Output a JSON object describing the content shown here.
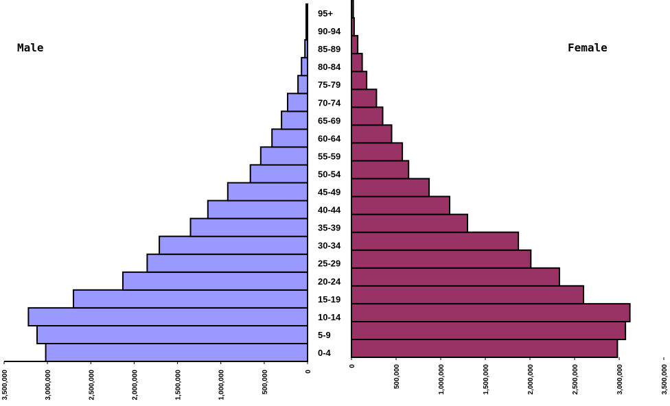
{
  "chart_data": {
    "type": "bar",
    "subtype": "population-pyramid",
    "orientation": "horizontal",
    "categories": [
      "0-4",
      "5-9",
      "10-14",
      "15-19",
      "20-24",
      "25-29",
      "30-34",
      "35-39",
      "40-44",
      "45-49",
      "50-54",
      "55-59",
      "60-64",
      "65-69",
      "70-74",
      "75-79",
      "80-84",
      "85-89",
      "90-94",
      "95+"
    ],
    "series": [
      {
        "name": "Male",
        "color": "#9999ff",
        "values": [
          3020000,
          3120000,
          3220000,
          2700000,
          2130000,
          1850000,
          1710000,
          1350000,
          1150000,
          920000,
          660000,
          540000,
          410000,
          300000,
          230000,
          110000,
          70000,
          30000,
          10000,
          8000
        ]
      },
      {
        "name": "Female",
        "color": "#993366",
        "values": [
          2980000,
          3070000,
          3120000,
          2600000,
          2330000,
          2010000,
          1870000,
          1300000,
          1100000,
          870000,
          640000,
          570000,
          450000,
          350000,
          280000,
          170000,
          120000,
          70000,
          30000,
          20000
        ]
      }
    ],
    "male_axis": {
      "ticks": [
        3500000,
        3000000,
        2500000,
        2000000,
        1500000,
        1000000,
        500000,
        0
      ],
      "tick_labels": [
        "3,500,000",
        "3,000,000",
        "2,500,000",
        "2,000,000",
        "1,500,000",
        "1,000,000",
        "500,000",
        "0"
      ],
      "range": [
        3500000,
        0
      ]
    },
    "female_axis": {
      "ticks": [
        0,
        500000,
        1000000,
        1500000,
        2000000,
        2500000,
        3000000,
        3500000
      ],
      "tick_labels": [
        "0",
        "500,000",
        "1,000,000",
        "1,500,000",
        "2,000,000",
        "2,500,000",
        "3,000,000",
        "3,500,000"
      ],
      "range": [
        0,
        3500000
      ]
    },
    "grid": false
  },
  "labels": {
    "male": "Male",
    "female": "Female"
  }
}
